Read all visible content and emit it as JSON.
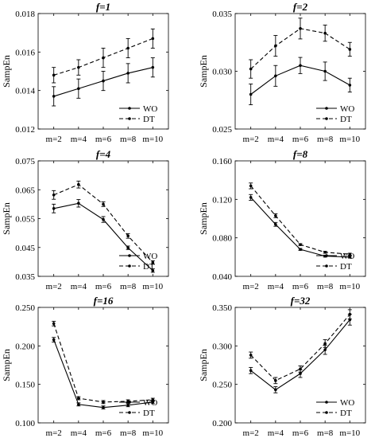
{
  "series_names": [
    "WO",
    "DT"
  ],
  "series_styles": [
    {
      "dash": "none",
      "color": "#000000"
    },
    {
      "dash": "5,3",
      "color": "#000000"
    }
  ],
  "legend_position": "bottom-right",
  "chart_data": [
    {
      "type": "line",
      "title": "f=1",
      "ylabel": "SampEn",
      "categories": [
        "m=2",
        "m=4",
        "m=6",
        "m=8",
        "m=10"
      ],
      "ylim": [
        0.012,
        0.018
      ],
      "yticks": [
        "0.012",
        "0.014",
        "0.016",
        "0.018"
      ],
      "series": [
        {
          "name": "WO",
          "values": [
            0.0137,
            0.0141,
            0.0145,
            0.0149,
            0.0152
          ],
          "errors": [
            0.0005,
            0.0005,
            0.0005,
            0.0005,
            0.0005
          ]
        },
        {
          "name": "DT",
          "values": [
            0.0148,
            0.0152,
            0.0157,
            0.0162,
            0.0167
          ],
          "errors": [
            0.0004,
            0.0004,
            0.0005,
            0.0005,
            0.0005
          ]
        }
      ]
    },
    {
      "type": "line",
      "title": "f=2",
      "ylabel": "SampEn",
      "categories": [
        "m=2",
        "m=4",
        "m=6",
        "m=8",
        "m=10"
      ],
      "ylim": [
        0.025,
        0.035
      ],
      "yticks": [
        "0.025",
        "0.030",
        "0.035"
      ],
      "series": [
        {
          "name": "WO",
          "values": [
            0.028,
            0.0296,
            0.0305,
            0.03,
            0.0288
          ],
          "errors": [
            0.0009,
            0.0009,
            0.0007,
            0.0008,
            0.0006
          ]
        },
        {
          "name": "DT",
          "values": [
            0.0302,
            0.0322,
            0.0337,
            0.0333,
            0.0319
          ],
          "errors": [
            0.0008,
            0.0009,
            0.0009,
            0.0007,
            0.0006
          ]
        }
      ]
    },
    {
      "type": "line",
      "title": "f=4",
      "ylabel": "SampEn",
      "categories": [
        "m=2",
        "m=4",
        "m=6",
        "m=8",
        "m=10"
      ],
      "ylim": [
        0.035,
        0.075
      ],
      "yticks": [
        "0.035",
        "0.045",
        "0.055",
        "0.065",
        "0.075"
      ],
      "series": [
        {
          "name": "WO",
          "values": [
            0.0585,
            0.0603,
            0.0547,
            0.0449,
            0.037
          ],
          "errors": [
            0.0015,
            0.0013,
            0.001,
            0.0006,
            0.0006
          ]
        },
        {
          "name": "DT",
          "values": [
            0.0632,
            0.0668,
            0.06,
            0.049,
            0.0398
          ],
          "errors": [
            0.0015,
            0.0012,
            0.0008,
            0.0008,
            0.0006
          ]
        }
      ]
    },
    {
      "type": "line",
      "title": "f=8",
      "ylabel": "SampEn",
      "categories": [
        "m=2",
        "m=4",
        "m=6",
        "m=8",
        "m=10"
      ],
      "ylim": [
        0.04,
        0.16
      ],
      "yticks": [
        "0.040",
        "0.080",
        "0.120",
        "0.160"
      ],
      "series": [
        {
          "name": "WO",
          "values": [
            0.122,
            0.094,
            0.068,
            0.061,
            0.06
          ],
          "errors": [
            0.003,
            0.002,
            0.001,
            0.001,
            0.001
          ]
        },
        {
          "name": "DT",
          "values": [
            0.134,
            0.103,
            0.073,
            0.065,
            0.063
          ],
          "errors": [
            0.003,
            0.002,
            0.001,
            0.001,
            0.001
          ]
        }
      ]
    },
    {
      "type": "line",
      "title": "f=16",
      "ylabel": "SampEn",
      "categories": [
        "m=2",
        "m=4",
        "m=6",
        "m=8",
        "m=10"
      ],
      "ylim": [
        0.1,
        0.25
      ],
      "yticks": [
        "0.100",
        "0.150",
        "0.200",
        "0.250"
      ],
      "series": [
        {
          "name": "WO",
          "values": [
            0.208,
            0.124,
            0.12,
            0.123,
            0.127
          ],
          "errors": [
            0.003,
            0.002,
            0.002,
            0.002,
            0.002
          ]
        },
        {
          "name": "DT",
          "values": [
            0.229,
            0.132,
            0.127,
            0.128,
            0.13
          ],
          "errors": [
            0.003,
            0.002,
            0.002,
            0.002,
            0.002
          ]
        }
      ]
    },
    {
      "type": "line",
      "title": "f=32",
      "ylabel": "SampEn",
      "categories": [
        "m=2",
        "m=4",
        "m=6",
        "m=8",
        "m=10"
      ],
      "ylim": [
        0.2,
        0.35
      ],
      "yticks": [
        "0.200",
        "0.250",
        "0.300",
        "0.350"
      ],
      "series": [
        {
          "name": "WO",
          "values": [
            0.268,
            0.243,
            0.264,
            0.295,
            0.334
          ],
          "errors": [
            0.004,
            0.004,
            0.005,
            0.006,
            0.007
          ]
        },
        {
          "name": "DT",
          "values": [
            0.288,
            0.255,
            0.27,
            0.303,
            0.341
          ],
          "errors": [
            0.004,
            0.004,
            0.004,
            0.005,
            0.006
          ]
        }
      ]
    }
  ]
}
